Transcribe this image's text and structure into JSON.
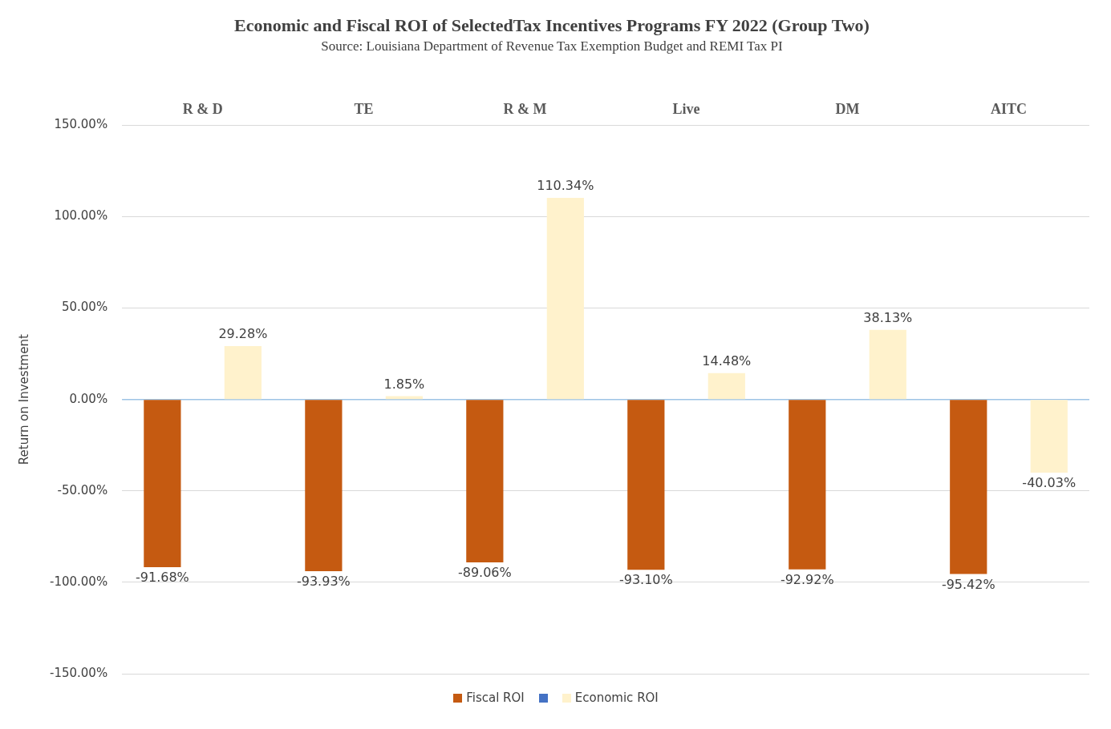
{
  "chart_data": {
    "type": "bar",
    "title": "Economic and Fiscal ROI of SelectedTax Incentives Programs FY 2022 (Group Two)",
    "subtitle": "Source: Louisiana Department of Revenue Tax Exemption Budget and REMI Tax PI",
    "ylabel": "Return on Investment",
    "categories": [
      "R & D",
      "TE",
      "R & M",
      "Live",
      "DM",
      "AITC"
    ],
    "series": [
      {
        "name": "Fiscal ROI",
        "color": "#c55a11",
        "values": [
          -91.68,
          -93.93,
          -89.06,
          -93.1,
          -92.92,
          -95.42
        ],
        "value_labels": [
          "-91.68%",
          "-93.93%",
          "-89.06%",
          "-93.10%",
          "-92.92%",
          "-95.42%"
        ]
      },
      {
        "color": "#4472c4",
        "values": [
          null,
          null,
          null,
          null,
          null,
          null
        ]
      },
      {
        "name": "Economic ROI",
        "color": "#fff2cc",
        "values": [
          29.28,
          1.85,
          110.34,
          14.48,
          38.13,
          -40.03
        ],
        "value_labels": [
          "29.28%",
          "1.85%",
          "110.34%",
          "14.48%",
          "38.13%",
          "-40.03%"
        ]
      }
    ],
    "ylim": [
      -150,
      150
    ],
    "yticks": [
      {
        "value": -150,
        "label": "-150.00%"
      },
      {
        "value": -100,
        "label": "-100.00%"
      },
      {
        "value": -50,
        "label": "-50.00%"
      },
      {
        "value": 0,
        "label": "0.00%"
      },
      {
        "value": 50,
        "label": "50.00%"
      },
      {
        "value": 100,
        "label": "100.00%"
      },
      {
        "value": 150,
        "label": "150.00%"
      }
    ],
    "ref_lines": [
      {
        "axis": "y",
        "value": 0,
        "color": "#9dc3e6"
      }
    ],
    "grid": "y",
    "legend": "bottom"
  }
}
